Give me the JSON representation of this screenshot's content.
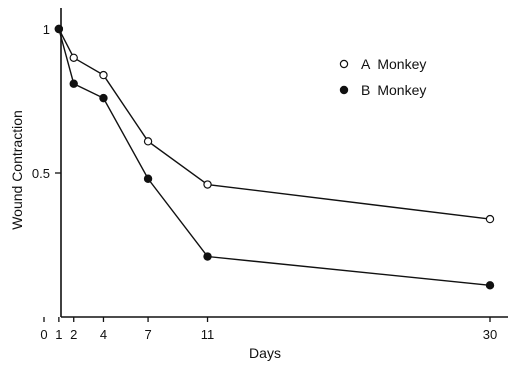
{
  "chart_data": {
    "type": "line",
    "xlabel": "Days",
    "ylabel": "Wound Contraction",
    "xlim": [
      0,
      30.5
    ],
    "ylim": [
      0,
      1.05
    ],
    "x_ticks": [
      0,
      1,
      2,
      4,
      7,
      11,
      30
    ],
    "y_ticks": [
      0.5,
      1
    ],
    "y_tick_labels": [
      "0.5",
      "1"
    ],
    "grid": false,
    "legend_position": "top-right",
    "series": [
      {
        "name": "A Monkey",
        "marker": "open-circle",
        "color": "#111111",
        "x": [
          1,
          2,
          4,
          7,
          11,
          30
        ],
        "y": [
          1.0,
          0.9,
          0.84,
          0.61,
          0.46,
          0.34
        ]
      },
      {
        "name": "B Monkey",
        "marker": "filled-circle",
        "color": "#111111",
        "x": [
          1,
          2,
          4,
          7,
          11,
          30
        ],
        "y": [
          1.0,
          0.81,
          0.76,
          0.48,
          0.21,
          0.11
        ]
      }
    ]
  }
}
